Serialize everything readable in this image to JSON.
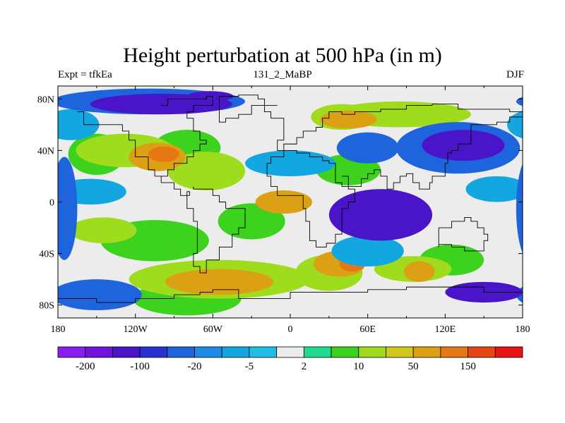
{
  "chart_data": {
    "type": "heatmap",
    "title": "Height perturbation at 500 hPa (in m)",
    "subtitle_left": "Expt = tfkEa",
    "subtitle_center": "131_2_MaBP",
    "subtitle_right": "DJF",
    "xlim": [
      -180,
      180
    ],
    "ylim": [
      -90,
      90
    ],
    "x_ticks": [
      {
        "value": -180,
        "label": "180"
      },
      {
        "value": -120,
        "label": "120W"
      },
      {
        "value": -60,
        "label": "60W"
      },
      {
        "value": 0,
        "label": "0"
      },
      {
        "value": 60,
        "label": "60E"
      },
      {
        "value": 120,
        "label": "120E"
      },
      {
        "value": 180,
        "label": "180"
      }
    ],
    "y_ticks": [
      {
        "value": 80,
        "label": "80N"
      },
      {
        "value": 40,
        "label": "40N"
      },
      {
        "value": 0,
        "label": "0"
      },
      {
        "value": -40,
        "label": "40S"
      },
      {
        "value": -80,
        "label": "80S"
      }
    ],
    "colorbar": {
      "colors": [
        "#8a1ef0",
        "#6e14dc",
        "#4a14c8",
        "#2832d2",
        "#1e64dc",
        "#1e8ce6",
        "#14a6e0",
        "#1ebee6",
        "#ececec",
        "#1edc8c",
        "#3cd21e",
        "#a0dc1e",
        "#d2c81e",
        "#dca014",
        "#e67814",
        "#e64614",
        "#e61414"
      ],
      "labels": [
        {
          "after_box": 1,
          "label": "-200"
        },
        {
          "after_box": 3,
          "label": "-100"
        },
        {
          "after_box": 5,
          "label": "-20"
        },
        {
          "after_box": 7,
          "label": "-5"
        },
        {
          "after_box": 9,
          "label": "2"
        },
        {
          "after_box": 11,
          "label": "10"
        },
        {
          "after_box": 13,
          "label": "50"
        },
        {
          "after_box": 15,
          "label": "150"
        }
      ]
    },
    "field_regions": [
      {
        "value": 5,
        "ellipses": [
          [
            -150,
            37,
            22,
            16
          ],
          [
            -80,
            42,
            26,
            14
          ],
          [
            -30,
            -15,
            26,
            14
          ],
          [
            -105,
            -30,
            42,
            16
          ],
          [
            45,
            25,
            25,
            12
          ],
          [
            125,
            -45,
            25,
            12
          ],
          [
            -80,
            -75,
            42,
            13
          ]
        ]
      },
      {
        "value": 25,
        "ellipses": [
          [
            -128,
            40,
            38,
            13
          ],
          [
            -65,
            24,
            30,
            15
          ],
          [
            85,
            68,
            55,
            10
          ],
          [
            40,
            66,
            24,
            10
          ],
          [
            -55,
            -60,
            70,
            15
          ],
          [
            30,
            -55,
            26,
            14
          ],
          [
            95,
            -52,
            30,
            10
          ],
          [
            -145,
            -22,
            26,
            10
          ]
        ]
      },
      {
        "value": 60,
        "ellipses": [
          [
            -103,
            35,
            22,
            11
          ],
          [
            45,
            64,
            22,
            7
          ],
          [
            -55,
            -62,
            42,
            10
          ],
          [
            -5,
            0,
            22,
            9
          ],
          [
            38,
            -48,
            20,
            10
          ],
          [
            100,
            -54,
            12,
            8
          ]
        ]
      },
      {
        "value": 120,
        "ellipses": [
          [
            -98,
            37,
            12,
            6
          ],
          [
            48,
            -48,
            10,
            6
          ]
        ]
      },
      {
        "value": -3,
        "ellipses": [
          [
            -155,
            8,
            28,
            10
          ],
          [
            0,
            30,
            35,
            10
          ],
          [
            60,
            -38,
            28,
            12
          ],
          [
            -170,
            60,
            22,
            12
          ],
          [
            160,
            10,
            24,
            10
          ]
        ]
      },
      {
        "value": -15,
        "ellipses": [
          [
            -110,
            78,
            75,
            10
          ],
          [
            -150,
            -72,
            35,
            12
          ],
          [
            130,
            42,
            48,
            20
          ],
          [
            60,
            42,
            24,
            12
          ],
          [
            -175,
            -5,
            10,
            40
          ]
        ]
      },
      {
        "value": -60,
        "ellipses": [
          [
            -100,
            76,
            55,
            8
          ],
          [
            134,
            44,
            32,
            12
          ],
          [
            70,
            -10,
            40,
            20
          ],
          [
            150,
            -70,
            30,
            8
          ]
        ]
      },
      {
        "value": -150,
        "ellipses": [
          [
            140,
            42,
            16,
            7
          ],
          [
            -62,
            82,
            18,
            4
          ]
        ]
      }
    ],
    "coastline_polylines": [
      [
        [
          -100,
          75
        ],
        [
          -95,
          80
        ],
        [
          -65,
          82
        ],
        [
          -60,
          75
        ],
        [
          -75,
          70
        ],
        [
          -80,
          65
        ],
        [
          -75,
          55
        ],
        [
          -70,
          48
        ],
        [
          -65,
          45
        ],
        [
          -70,
          40
        ],
        [
          -75,
          35
        ],
        [
          -80,
          30
        ],
        [
          -90,
          25
        ],
        [
          -95,
          20
        ],
        [
          -105,
          20
        ],
        [
          -100,
          15
        ],
        [
          -90,
          10
        ],
        [
          -85,
          5
        ],
        [
          -78,
          8
        ],
        [
          -80,
          0
        ],
        [
          -80,
          -5
        ],
        [
          -75,
          -15
        ],
        [
          -72,
          -25
        ],
        [
          -72,
          -40
        ],
        [
          -75,
          -50
        ],
        [
          -70,
          -55
        ],
        [
          -65,
          -55
        ],
        [
          -65,
          -45
        ],
        [
          -55,
          -35
        ],
        [
          -45,
          -25
        ],
        [
          -40,
          -20
        ],
        [
          -35,
          -10
        ],
        [
          -35,
          -5
        ],
        [
          -50,
          0
        ],
        [
          -55,
          5
        ],
        [
          -60,
          10
        ],
        [
          -75,
          12
        ]
      ],
      [
        [
          -130,
          55
        ],
        [
          -125,
          48
        ],
        [
          -120,
          35
        ],
        [
          -110,
          25
        ],
        [
          -105,
          20
        ]
      ],
      [
        [
          -165,
          70
        ],
        [
          -160,
          60
        ],
        [
          -150,
          60
        ],
        [
          -140,
          60
        ],
        [
          -130,
          55
        ]
      ],
      [
        [
          -10,
          75
        ],
        [
          -20,
          70
        ],
        [
          -15,
          65
        ],
        [
          -5,
          58
        ],
        [
          -5,
          48
        ],
        [
          -10,
          40
        ],
        [
          -5,
          35
        ],
        [
          -15,
          30
        ],
        [
          -18,
          20
        ],
        [
          -15,
          12
        ],
        [
          -10,
          5
        ],
        [
          0,
          5
        ],
        [
          10,
          5
        ],
        [
          10,
          -5
        ],
        [
          12,
          -15
        ],
        [
          15,
          -30
        ],
        [
          20,
          -35
        ],
        [
          28,
          -32
        ],
        [
          35,
          -25
        ],
        [
          40,
          -15
        ],
        [
          40,
          -5
        ],
        [
          45,
          0
        ],
        [
          50,
          10
        ],
        [
          45,
          12
        ],
        [
          40,
          15
        ],
        [
          35,
          25
        ],
        [
          35,
          30
        ],
        [
          30,
          32
        ],
        [
          25,
          35
        ],
        [
          15,
          38
        ],
        [
          5,
          40
        ],
        [
          -5,
          45
        ],
        [
          5,
          50
        ],
        [
          10,
          55
        ],
        [
          20,
          58
        ],
        [
          25,
          65
        ],
        [
          30,
          70
        ],
        [
          40,
          68
        ],
        [
          50,
          70
        ],
        [
          70,
          72
        ],
        [
          90,
          75
        ],
        [
          110,
          76
        ],
        [
          130,
          72
        ],
        [
          150,
          72
        ],
        [
          170,
          70
        ],
        [
          180,
          68
        ]
      ],
      [
        [
          40,
          20
        ],
        [
          45,
          12
        ],
        [
          55,
          18
        ],
        [
          60,
          22
        ],
        [
          65,
          25
        ],
        [
          70,
          20
        ],
        [
          75,
          10
        ],
        [
          80,
          15
        ],
        [
          85,
          20
        ],
        [
          90,
          22
        ],
        [
          95,
          15
        ],
        [
          100,
          10
        ],
        [
          105,
          10
        ],
        [
          108,
          15
        ],
        [
          110,
          20
        ],
        [
          120,
          30
        ],
        [
          122,
          38
        ],
        [
          125,
          40
        ],
        [
          130,
          45
        ],
        [
          140,
          50
        ],
        [
          140,
          60
        ],
        [
          150,
          60
        ],
        [
          160,
          62
        ],
        [
          170,
          66
        ],
        [
          180,
          68
        ]
      ],
      [
        [
          115,
          -20
        ],
        [
          125,
          -15
        ],
        [
          135,
          -12
        ],
        [
          140,
          -15
        ],
        [
          145,
          -20
        ],
        [
          150,
          -25
        ],
        [
          153,
          -30
        ],
        [
          150,
          -38
        ],
        [
          140,
          -38
        ],
        [
          135,
          -35
        ],
        [
          125,
          -33
        ],
        [
          115,
          -35
        ],
        [
          115,
          -25
        ],
        [
          115,
          -20
        ]
      ],
      [
        [
          -180,
          -75
        ],
        [
          -150,
          -78
        ],
        [
          -120,
          -75
        ],
        [
          -90,
          -72
        ],
        [
          -70,
          -70
        ],
        [
          -60,
          -68
        ],
        [
          -40,
          -75
        ],
        [
          0,
          -70
        ],
        [
          30,
          -70
        ],
        [
          60,
          -68
        ],
        [
          90,
          -66
        ],
        [
          120,
          -66
        ],
        [
          150,
          -70
        ],
        [
          180,
          -75
        ]
      ],
      [
        [
          -55,
          82
        ],
        [
          -40,
          83
        ],
        [
          -25,
          80
        ],
        [
          -20,
          75
        ],
        [
          -30,
          68
        ],
        [
          -40,
          65
        ],
        [
          -50,
          62
        ],
        [
          -55,
          70
        ],
        [
          -55,
          82
        ]
      ]
    ]
  }
}
